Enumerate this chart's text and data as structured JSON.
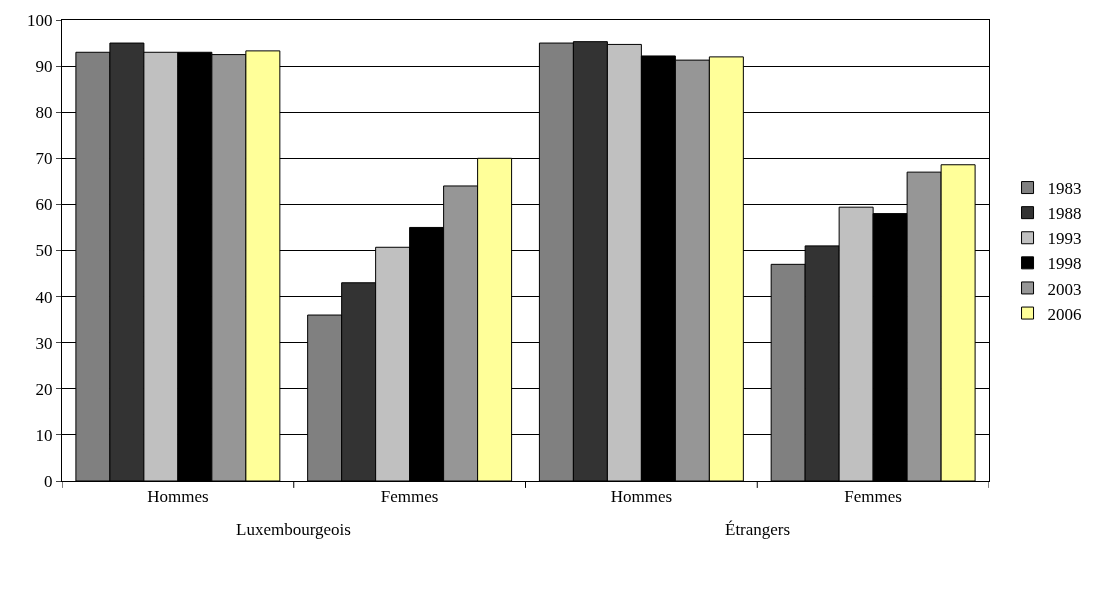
{
  "chart_data": {
    "type": "bar",
    "categories": [
      "Hommes",
      "Femmes",
      "Hommes",
      "Femmes"
    ],
    "series": [
      {
        "name": "1983",
        "color": "#808080",
        "values": [
          93,
          36,
          95,
          47
        ]
      },
      {
        "name": "1988",
        "color": "#333333",
        "values": [
          95,
          43,
          95.3,
          51
        ]
      },
      {
        "name": "1993",
        "color": "#c0c0c0",
        "values": [
          93,
          50.7,
          94.7,
          59.4
        ]
      },
      {
        "name": "1998",
        "color": "#000000",
        "values": [
          93,
          55,
          92.2,
          58
        ]
      },
      {
        "name": "2003",
        "color": "#969696",
        "values": [
          92.5,
          64,
          91.3,
          67
        ]
      },
      {
        "name": "2006",
        "color": "#ffff99",
        "values": [
          93.3,
          70,
          92,
          68.6
        ]
      }
    ],
    "annotations": [
      "Luxembourgeois",
      "Étrangers"
    ],
    "ylim": [
      0,
      100
    ],
    "yticks": [
      0,
      10,
      20,
      30,
      40,
      50,
      60,
      70,
      80,
      90,
      100
    ],
    "grid": "y",
    "legend": "right"
  }
}
